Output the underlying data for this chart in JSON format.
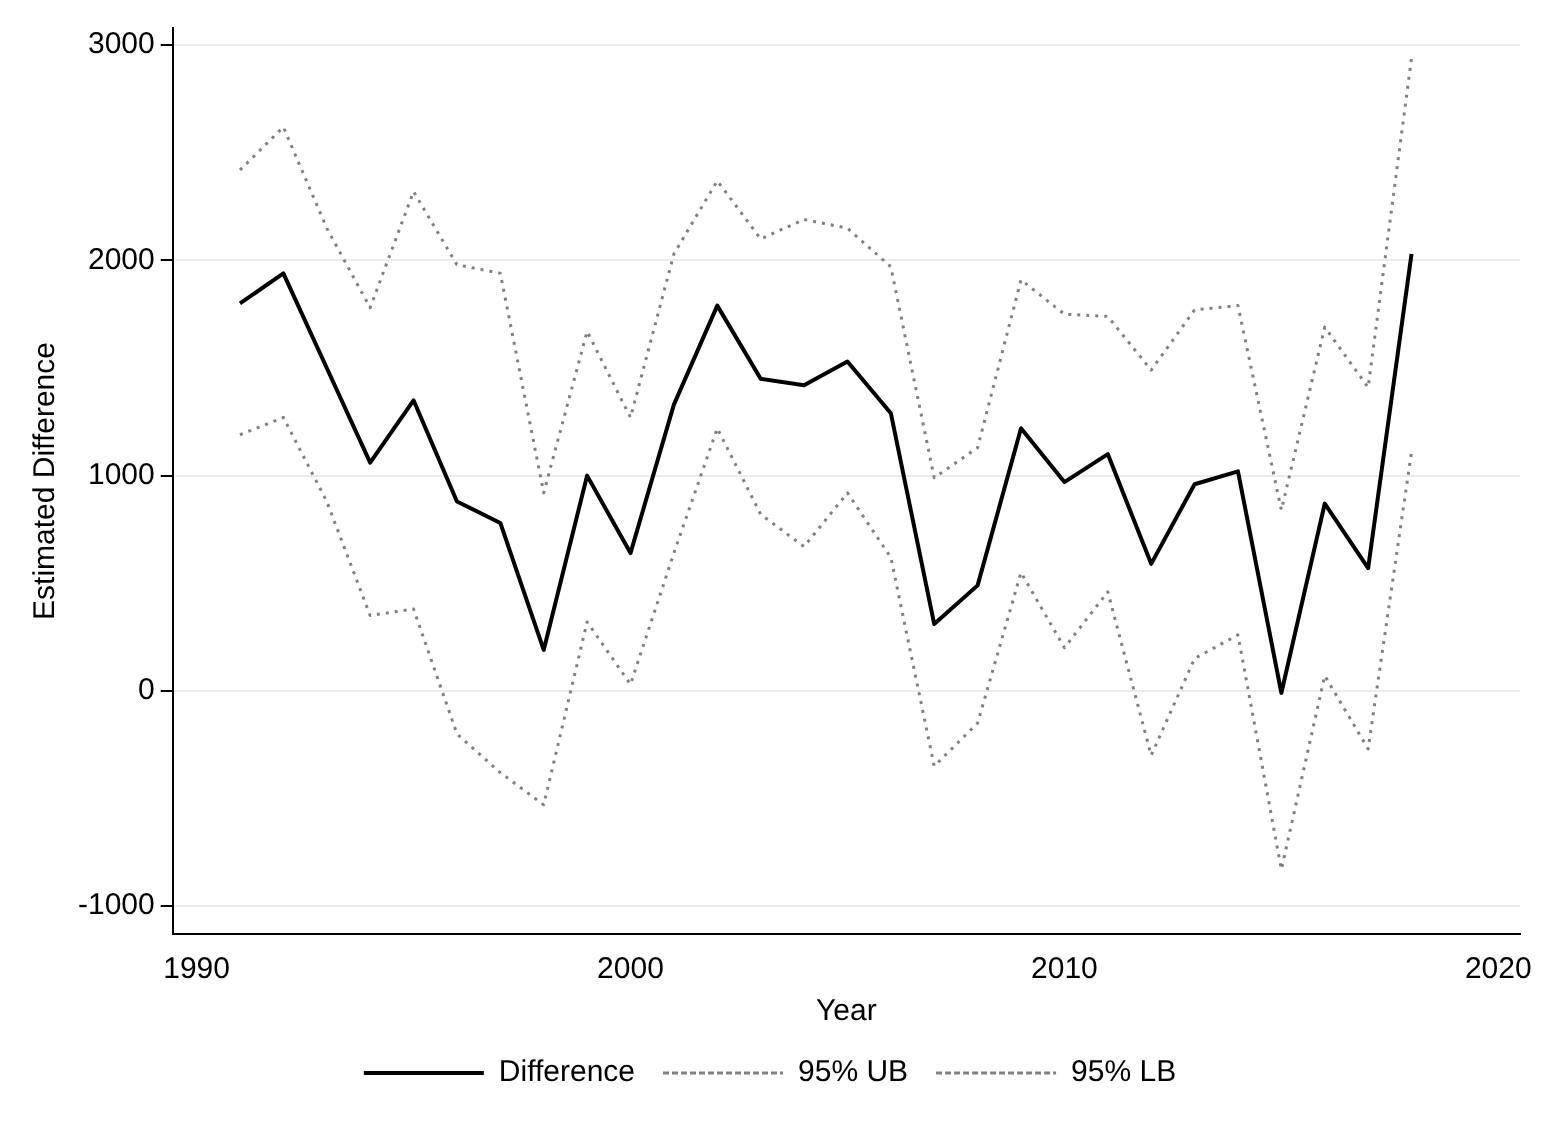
{
  "chart_data": {
    "type": "line",
    "xlabel": "Year",
    "ylabel": "Estimated Difference",
    "x": [
      1991,
      1992,
      1993,
      1994,
      1995,
      1996,
      1997,
      1998,
      1999,
      2000,
      2001,
      2002,
      2003,
      2004,
      2005,
      2006,
      2007,
      2008,
      2009,
      2010,
      2011,
      2012,
      2013,
      2014,
      2015,
      2016,
      2017,
      2018
    ],
    "series": [
      {
        "name": "Difference",
        "color": "#000000",
        "line_style": "solid",
        "values": [
          1800,
          1940,
          1500,
          1060,
          1350,
          880,
          780,
          190,
          1000,
          640,
          1330,
          1790,
          1450,
          1420,
          1530,
          1290,
          310,
          490,
          1220,
          970,
          1100,
          590,
          960,
          1020,
          -10,
          870,
          570,
          2030
        ]
      },
      {
        "name": "95% UB",
        "color": "#808080",
        "line_style": "dotted",
        "values": [
          2420,
          2620,
          2150,
          1780,
          2320,
          1980,
          1940,
          920,
          1670,
          1270,
          2030,
          2370,
          2100,
          2190,
          2150,
          1970,
          990,
          1130,
          1910,
          1750,
          1740,
          1490,
          1770,
          1790,
          840,
          1690,
          1410,
          2940
        ]
      },
      {
        "name": "95% LB",
        "color": "#808080",
        "line_style": "dotted",
        "values": [
          1190,
          1270,
          880,
          350,
          380,
          -200,
          -380,
          -530,
          320,
          30,
          640,
          1220,
          820,
          670,
          920,
          620,
          -350,
          -150,
          550,
          200,
          460,
          -300,
          150,
          260,
          -830,
          70,
          -270,
          1110
        ]
      }
    ],
    "xlim": [
      1989.45,
      2020.5
    ],
    "xticks": [
      1990,
      2000,
      2010,
      2020
    ],
    "ylim": [
      -1130,
      3080
    ],
    "yticks": [
      -1000,
      0,
      1000,
      2000,
      3000
    ],
    "grid": "y",
    "legend": "bottom",
    "marker": "none"
  }
}
